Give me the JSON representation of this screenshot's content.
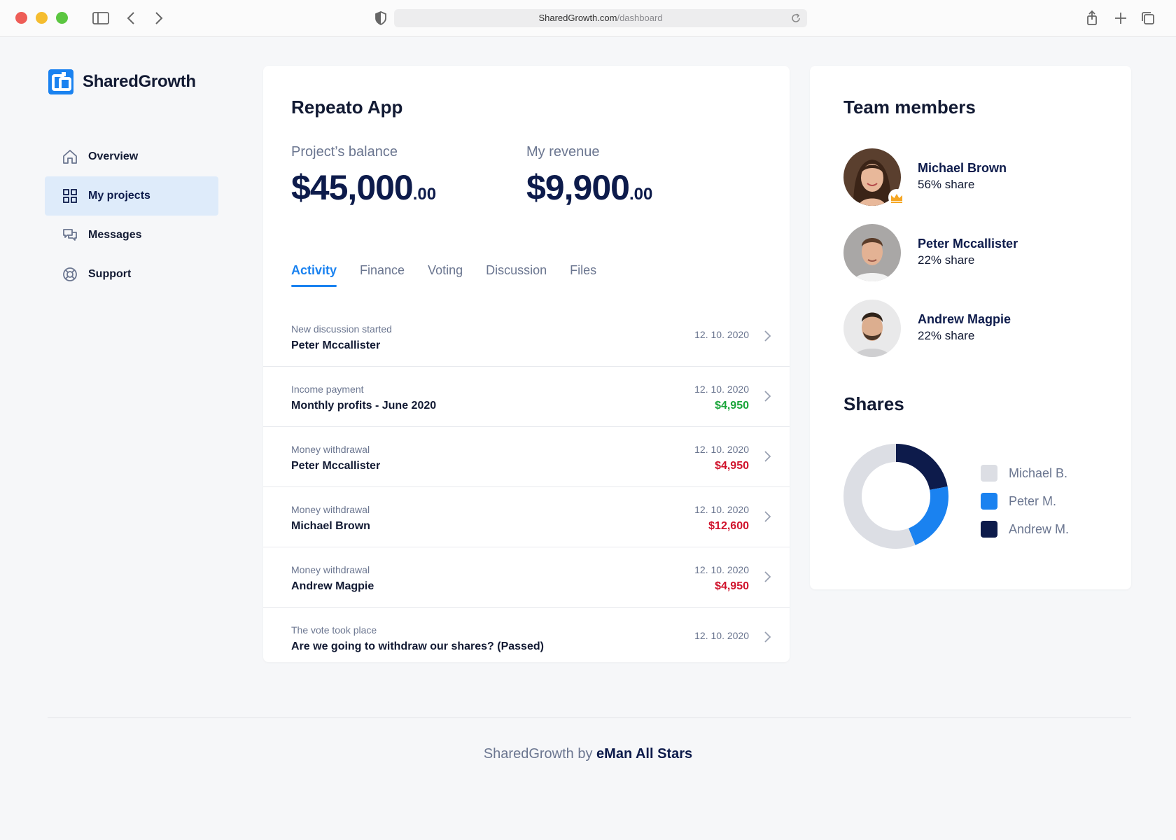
{
  "browser": {
    "url_domain": "SharedGrowth.com",
    "url_path": "/dashboard"
  },
  "sidebar": {
    "logo_text": "SharedGrowth",
    "items": [
      {
        "label": "Overview",
        "icon": "home-icon"
      },
      {
        "label": "My projects",
        "icon": "grid-icon",
        "active": true
      },
      {
        "label": "Messages",
        "icon": "chat-icon"
      },
      {
        "label": "Support",
        "icon": "lifebuoy-icon"
      }
    ]
  },
  "project": {
    "title": "Repeato App",
    "balance_label": "Project’s balance",
    "balance_main": "$45,000",
    "balance_cents": ".00",
    "revenue_label": "My revenue",
    "revenue_main": "$9,900",
    "revenue_cents": ".00",
    "tabs": [
      "Activity",
      "Finance",
      "Voting",
      "Discussion",
      "Files"
    ],
    "active_tab": "Activity",
    "activity": [
      {
        "kind": "New discussion started",
        "subject": "Peter Mccallister",
        "date": "12. 10. 2020",
        "amount": ""
      },
      {
        "kind": "Income payment",
        "subject": "Monthly profits - June 2020",
        "date": "12. 10. 2020",
        "amount": "$4,950",
        "amount_color": "#1aa53a"
      },
      {
        "kind": "Money withdrawal",
        "subject": "Peter Mccallister",
        "date": "12. 10. 2020",
        "amount": "$4,950",
        "amount_color": "#d0132c"
      },
      {
        "kind": "Money withdrawal",
        "subject": "Michael Brown",
        "date": "12. 10. 2020",
        "amount": "$12,600",
        "amount_color": "#d0132c"
      },
      {
        "kind": "Money withdrawal",
        "subject": "Andrew Magpie",
        "date": "12. 10. 2020",
        "amount": "$4,950",
        "amount_color": "#d0132c"
      },
      {
        "kind": "The vote took place",
        "subject": "Are we going to withdraw our shares? (Passed)",
        "date": "12. 10. 2020",
        "amount": ""
      }
    ]
  },
  "team": {
    "title": "Team members",
    "members": [
      {
        "name": "Michael Brown",
        "share": "56% share",
        "owner": true
      },
      {
        "name": "Peter Mccallister",
        "share": "22% share"
      },
      {
        "name": "Andrew Magpie",
        "share": "22% share"
      }
    ],
    "shares_title": "Shares",
    "legend": [
      {
        "label": "Michael B.",
        "color": "#dcdee4"
      },
      {
        "label": "Peter M.",
        "color": "#1a82f0"
      },
      {
        "label": "Andrew M.",
        "color": "#0d1b4b"
      }
    ]
  },
  "chart_data": {
    "type": "pie",
    "categories": [
      "Michael B.",
      "Peter M.",
      "Andrew M."
    ],
    "values": [
      56,
      22,
      22
    ],
    "colors": [
      "#dcdee4",
      "#1a82f0",
      "#0d1b4b"
    ]
  },
  "footer": {
    "prefix": "SharedGrowth by ",
    "brand": "eMan All Stars"
  }
}
